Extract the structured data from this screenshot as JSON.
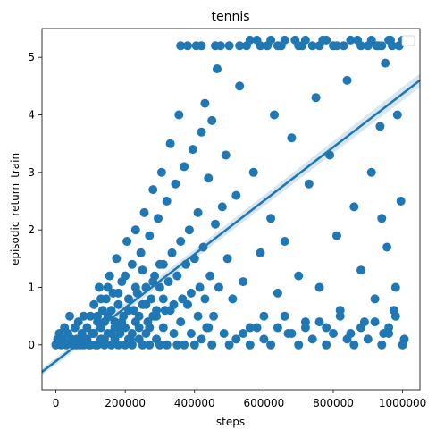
{
  "chart_data": {
    "type": "scatter",
    "title": "tennis",
    "xlabel": "steps",
    "ylabel": "episodic_return_train",
    "xlim": [
      -40000,
      1050000
    ],
    "ylim": [
      -0.78,
      5.5
    ],
    "x_ticks": [
      0,
      200000,
      400000,
      600000,
      800000,
      1000000
    ],
    "y_ticks": [
      0,
      1,
      2,
      3,
      4,
      5
    ],
    "grid": false,
    "legend": "top-right (empty)",
    "color": "#1f77b4",
    "regression": {
      "x": [
        -40000,
        1050000
      ],
      "y": [
        -0.47,
        4.6
      ],
      "ci_halfwidth_start": 0.06,
      "ci_halfwidth_end": 0.12
    },
    "points": [
      [
        0,
        0
      ],
      [
        5000,
        0.1
      ],
      [
        10000,
        0.2
      ],
      [
        15000,
        0
      ],
      [
        20000,
        0.1
      ],
      [
        25000,
        0.3
      ],
      [
        30000,
        0
      ],
      [
        35000,
        0.2
      ],
      [
        40000,
        0.5
      ],
      [
        45000,
        0.1
      ],
      [
        50000,
        0
      ],
      [
        55000,
        0.3
      ],
      [
        60000,
        0.1
      ],
      [
        65000,
        0.4
      ],
      [
        70000,
        0
      ],
      [
        75000,
        0.2
      ],
      [
        80000,
        0.5
      ],
      [
        85000,
        0.1
      ],
      [
        90000,
        0.3
      ],
      [
        95000,
        0
      ],
      [
        100000,
        0.5
      ],
      [
        105000,
        0.2
      ],
      [
        110000,
        0.7
      ],
      [
        115000,
        0
      ],
      [
        120000,
        0.4
      ],
      [
        125000,
        1.0
      ],
      [
        130000,
        0.3
      ],
      [
        135000,
        0.6
      ],
      [
        140000,
        0.1
      ],
      [
        145000,
        0.8
      ],
      [
        150000,
        0.5
      ],
      [
        155000,
        1.2
      ],
      [
        160000,
        0.2
      ],
      [
        165000,
        0.9
      ],
      [
        170000,
        0.4
      ],
      [
        175000,
        1.5
      ],
      [
        180000,
        0.7
      ],
      [
        185000,
        0.2
      ],
      [
        190000,
        1.1
      ],
      [
        195000,
        0.5
      ],
      [
        200000,
        0.3
      ],
      [
        205000,
        1.8
      ],
      [
        210000,
        0.8
      ],
      [
        215000,
        0.1
      ],
      [
        220000,
        1.4
      ],
      [
        225000,
        0.6
      ],
      [
        230000,
        2.0
      ],
      [
        235000,
        0.9
      ],
      [
        240000,
        0.3
      ],
      [
        245000,
        1.6
      ],
      [
        250000,
        0.7
      ],
      [
        255000,
        2.3
      ],
      [
        260000,
        1.0
      ],
      [
        265000,
        0.4
      ],
      [
        270000,
        1.9
      ],
      [
        275000,
        0.8
      ],
      [
        280000,
        2.7
      ],
      [
        285000,
        1.2
      ],
      [
        290000,
        0.5
      ],
      [
        295000,
        2.2
      ],
      [
        300000,
        1.0
      ],
      [
        305000,
        3.0
      ],
      [
        310000,
        1.4
      ],
      [
        315000,
        0.6
      ],
      [
        320000,
        2.5
      ],
      [
        325000,
        1.1
      ],
      [
        330000,
        3.5
      ],
      [
        335000,
        1.6
      ],
      [
        340000,
        0.7
      ],
      [
        345000,
        2.8
      ],
      [
        350000,
        1.2
      ],
      [
        355000,
        4.0
      ],
      [
        360000,
        1.8
      ],
      [
        365000,
        0.8
      ],
      [
        370000,
        3.1
      ],
      [
        375000,
        1.4
      ],
      [
        380000,
        5.2
      ],
      [
        385000,
        2.0
      ],
      [
        390000,
        0.9
      ],
      [
        395000,
        3.4
      ],
      [
        400000,
        1.5
      ],
      [
        405000,
        5.2
      ],
      [
        410000,
        2.3
      ],
      [
        415000,
        1.0
      ],
      [
        420000,
        3.7
      ],
      [
        425000,
        1.7
      ],
      [
        430000,
        4.2
      ],
      [
        435000,
        0.3
      ],
      [
        440000,
        2.9
      ],
      [
        445000,
        1.2
      ],
      [
        450000,
        3.9
      ],
      [
        455000,
        0.5
      ],
      [
        460000,
        2.1
      ],
      [
        465000,
        4.8
      ],
      [
        470000,
        1.0
      ],
      [
        475000,
        5.2
      ],
      [
        480000,
        2.4
      ],
      [
        485000,
        0.2
      ],
      [
        490000,
        3.3
      ],
      [
        495000,
        1.5
      ],
      [
        500000,
        5.2
      ],
      [
        510000,
        0.8
      ],
      [
        520000,
        2.6
      ],
      [
        530000,
        4.5
      ],
      [
        540000,
        1.1
      ],
      [
        550000,
        5.2
      ],
      [
        560000,
        0.3
      ],
      [
        570000,
        3.0
      ],
      [
        580000,
        5.3
      ],
      [
        590000,
        1.6
      ],
      [
        600000,
        0.5
      ],
      [
        610000,
        5.2
      ],
      [
        620000,
        2.2
      ],
      [
        630000,
        4.0
      ],
      [
        640000,
        0.9
      ],
      [
        650000,
        5.2
      ],
      [
        660000,
        1.8
      ],
      [
        670000,
        0.2
      ],
      [
        680000,
        3.6
      ],
      [
        690000,
        5.3
      ],
      [
        700000,
        1.2
      ],
      [
        710000,
        5.2
      ],
      [
        720000,
        0.4
      ],
      [
        730000,
        2.8
      ],
      [
        740000,
        5.2
      ],
      [
        750000,
        4.3
      ],
      [
        760000,
        1.0
      ],
      [
        770000,
        5.3
      ],
      [
        780000,
        0.3
      ],
      [
        790000,
        3.3
      ],
      [
        800000,
        5.2
      ],
      [
        810000,
        1.9
      ],
      [
        820000,
        0.6
      ],
      [
        830000,
        5.2
      ],
      [
        840000,
        4.6
      ],
      [
        850000,
        0.2
      ],
      [
        860000,
        2.4
      ],
      [
        870000,
        5.3
      ],
      [
        880000,
        1.3
      ],
      [
        890000,
        0.4
      ],
      [
        900000,
        5.2
      ],
      [
        910000,
        3.0
      ],
      [
        920000,
        0.8
      ],
      [
        930000,
        5.2
      ],
      [
        940000,
        2.2
      ],
      [
        950000,
        4.9
      ],
      [
        960000,
        0.3
      ],
      [
        970000,
        5.2
      ],
      [
        980000,
        1.0
      ],
      [
        990000,
        5.2
      ],
      [
        1000000,
        5.3
      ],
      [
        1005000,
        0.1
      ],
      [
        995000,
        2.5
      ],
      [
        985000,
        4.0
      ],
      [
        975000,
        0.6
      ],
      [
        965000,
        5.3
      ],
      [
        955000,
        1.7
      ],
      [
        945000,
        0.2
      ],
      [
        935000,
        3.8
      ],
      [
        925000,
        5.2
      ],
      [
        60000,
        0
      ],
      [
        70000,
        0.1
      ],
      [
        80000,
        0
      ],
      [
        90000,
        0.1
      ],
      [
        100000,
        0
      ],
      [
        110000,
        0.2
      ],
      [
        120000,
        0
      ],
      [
        130000,
        0.1
      ],
      [
        140000,
        0
      ],
      [
        150000,
        0.2
      ],
      [
        160000,
        0
      ],
      [
        170000,
        0.1
      ],
      [
        180000,
        0
      ],
      [
        190000,
        0.3
      ],
      [
        200000,
        0
      ],
      [
        210000,
        0.1
      ],
      [
        220000,
        0
      ],
      [
        230000,
        0.4
      ],
      [
        240000,
        0.1
      ],
      [
        250000,
        0
      ],
      [
        260000,
        0.2
      ],
      [
        270000,
        0
      ],
      [
        280000,
        0.5
      ],
      [
        290000,
        0.1
      ],
      [
        300000,
        0
      ],
      [
        310000,
        0.3
      ],
      [
        320000,
        0
      ],
      [
        330000,
        0.6
      ],
      [
        340000,
        0.2
      ],
      [
        350000,
        0
      ],
      [
        360000,
        0.4
      ],
      [
        370000,
        0
      ],
      [
        380000,
        0.7
      ],
      [
        390000,
        0.2
      ],
      [
        400000,
        0
      ],
      [
        410000,
        0.5
      ],
      [
        420000,
        0.1
      ],
      [
        430000,
        0.8
      ],
      [
        440000,
        0.3
      ],
      [
        450000,
        0
      ],
      [
        120000,
        0.5
      ],
      [
        130000,
        0.8
      ],
      [
        140000,
        0.4
      ],
      [
        150000,
        1.0
      ],
      [
        160000,
        0.6
      ],
      [
        170000,
        0.3
      ],
      [
        180000,
        0.9
      ],
      [
        190000,
        0.4
      ],
      [
        200000,
        1.2
      ],
      [
        210000,
        0.6
      ],
      [
        220000,
        0.2
      ],
      [
        230000,
        1.0
      ],
      [
        240000,
        0.5
      ],
      [
        250000,
        1.3
      ],
      [
        260000,
        0.7
      ],
      [
        270000,
        0.3
      ],
      [
        280000,
        1.1
      ],
      [
        290000,
        0.6
      ],
      [
        300000,
        1.4
      ],
      [
        310000,
        0.8
      ],
      [
        500000,
        0
      ],
      [
        520000,
        0.1
      ],
      [
        540000,
        0.2
      ],
      [
        560000,
        0
      ],
      [
        580000,
        0.3
      ],
      [
        600000,
        0.1
      ],
      [
        620000,
        0
      ],
      [
        640000,
        0.3
      ],
      [
        660000,
        0.5
      ],
      [
        680000,
        0.2
      ],
      [
        700000,
        0
      ],
      [
        720000,
        0.3
      ],
      [
        740000,
        0.1
      ],
      [
        760000,
        0.4
      ],
      [
        780000,
        0
      ],
      [
        800000,
        0.2
      ],
      [
        820000,
        0.5
      ],
      [
        840000,
        0.1
      ],
      [
        860000,
        0
      ],
      [
        880000,
        0.3
      ],
      [
        900000,
        0.1
      ],
      [
        920000,
        0.4
      ],
      [
        940000,
        0
      ],
      [
        960000,
        0.2
      ],
      [
        980000,
        0.5
      ],
      [
        1000000,
        0
      ],
      [
        530000,
        5.2
      ],
      [
        560000,
        5.3
      ],
      [
        590000,
        5.2
      ],
      [
        620000,
        5.3
      ],
      [
        640000,
        5.2
      ],
      [
        660000,
        5.3
      ],
      [
        700000,
        5.2
      ],
      [
        720000,
        5.3
      ],
      [
        760000,
        5.2
      ],
      [
        780000,
        5.3
      ],
      [
        810000,
        5.2
      ],
      [
        850000,
        5.3
      ],
      [
        880000,
        5.2
      ],
      [
        910000,
        5.3
      ],
      [
        940000,
        5.2
      ],
      [
        960000,
        5.3
      ],
      [
        990000,
        5.2
      ],
      [
        460000,
        5.2
      ],
      [
        420000,
        5.2
      ],
      [
        360000,
        5.2
      ]
    ]
  }
}
